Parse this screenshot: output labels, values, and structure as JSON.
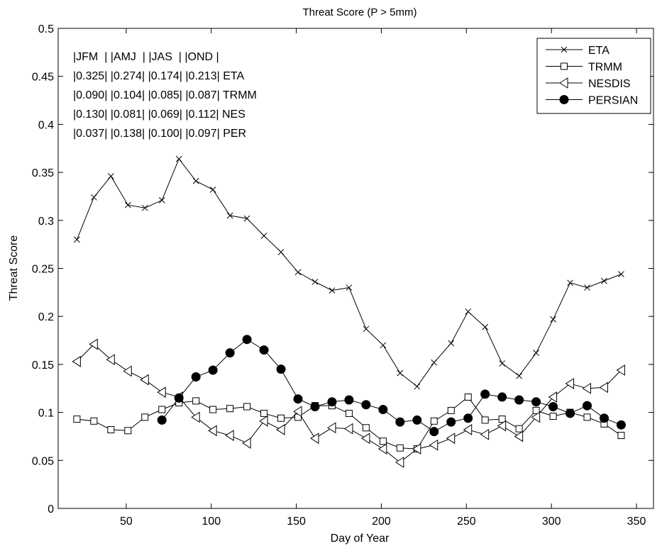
{
  "chart_data": {
    "type": "line",
    "title": "Threat Score (P > 5mm)",
    "xlabel": "Day of Year",
    "ylabel": "Threat Score",
    "xlim": [
      10,
      360
    ],
    "ylim": [
      0,
      0.5
    ],
    "xticks": [
      50,
      100,
      150,
      200,
      250,
      300,
      350
    ],
    "yticks": [
      0,
      0.05,
      0.1,
      0.15,
      0.2,
      0.25,
      0.3,
      0.35,
      0.4,
      0.45,
      0.5
    ],
    "xtick_labels": [
      "50",
      "100",
      "150",
      "200",
      "250",
      "300",
      "350"
    ],
    "ytick_labels": [
      "0",
      "0.05",
      "0.1",
      "0.15",
      "0.2",
      "0.25",
      "0.3",
      "0.35",
      "0.4",
      "0.45",
      "0.5"
    ],
    "grid": false,
    "legend_position": "top-right",
    "series": [
      {
        "name": "ETA",
        "marker": "x",
        "x": [
          21,
          31,
          41,
          51,
          61,
          71,
          81,
          91,
          101,
          111,
          121,
          131,
          141,
          151,
          161,
          171,
          181,
          191,
          201,
          211,
          221,
          231,
          241,
          251,
          261,
          271,
          281,
          291,
          301,
          311,
          321,
          331,
          341
        ],
        "values": [
          0.28,
          0.324,
          0.346,
          0.316,
          0.313,
          0.321,
          0.364,
          0.341,
          0.332,
          0.305,
          0.302,
          0.284,
          0.267,
          0.246,
          0.236,
          0.227,
          0.23,
          0.187,
          0.17,
          0.141,
          0.127,
          0.152,
          0.172,
          0.205,
          0.189,
          0.151,
          0.138,
          0.162,
          0.197,
          0.235,
          0.23,
          0.237,
          0.244
        ]
      },
      {
        "name": "TRMM",
        "marker": "square",
        "x": [
          21,
          31,
          41,
          51,
          61,
          71,
          81,
          91,
          101,
          111,
          121,
          131,
          141,
          151,
          161,
          171,
          181,
          191,
          201,
          211,
          221,
          231,
          241,
          251,
          261,
          271,
          281,
          291,
          301,
          311,
          321,
          331,
          341
        ],
        "values": [
          0.093,
          0.091,
          0.082,
          0.081,
          0.095,
          0.103,
          0.11,
          0.112,
          0.103,
          0.104,
          0.106,
          0.099,
          0.094,
          0.095,
          0.107,
          0.107,
          0.099,
          0.084,
          0.07,
          0.063,
          0.062,
          0.091,
          0.102,
          0.116,
          0.092,
          0.093,
          0.083,
          0.102,
          0.096,
          0.1,
          0.095,
          0.088,
          0.076
        ]
      },
      {
        "name": "NESDIS",
        "marker": "triangle-left",
        "x": [
          21,
          31,
          41,
          51,
          61,
          71,
          81,
          91,
          101,
          111,
          121,
          131,
          141,
          151,
          161,
          171,
          181,
          191,
          201,
          211,
          221,
          231,
          241,
          251,
          261,
          271,
          281,
          291,
          301,
          311,
          321,
          331,
          341
        ],
        "values": [
          0.153,
          0.171,
          0.155,
          0.143,
          0.134,
          0.121,
          0.116,
          0.095,
          0.081,
          0.076,
          0.068,
          0.091,
          0.082,
          0.101,
          0.073,
          0.084,
          0.083,
          0.073,
          0.062,
          0.048,
          0.062,
          0.066,
          0.073,
          0.082,
          0.077,
          0.086,
          0.075,
          0.095,
          0.116,
          0.13,
          0.125,
          0.126,
          0.144
        ]
      },
      {
        "name": "PERSIAN",
        "marker": "filled-circle",
        "x": [
          71,
          81,
          91,
          101,
          111,
          121,
          131,
          141,
          151,
          161,
          171,
          181,
          191,
          201,
          211,
          221,
          231,
          241,
          251,
          261,
          271,
          281,
          291,
          301,
          311,
          321,
          331,
          341
        ],
        "values": [
          0.092,
          0.115,
          0.137,
          0.144,
          0.162,
          0.176,
          0.165,
          0.145,
          0.114,
          0.106,
          0.111,
          0.113,
          0.108,
          0.103,
          0.09,
          0.092,
          0.08,
          0.09,
          0.094,
          0.119,
          0.116,
          0.113,
          0.111,
          0.106,
          0.099,
          0.107,
          0.094,
          0.087
        ]
      }
    ],
    "annotation_table": [
      "|JFM  | |AMJ  | |JAS  | |OND |",
      "|0.325| |0.274| |0.174| |0.213| ETA",
      "|0.090| |0.104| |0.085| |0.087| TRMM",
      "|0.130| |0.081| |0.069| |0.112| NES",
      "|0.037| |0.138| |0.100| |0.097| PER"
    ]
  }
}
